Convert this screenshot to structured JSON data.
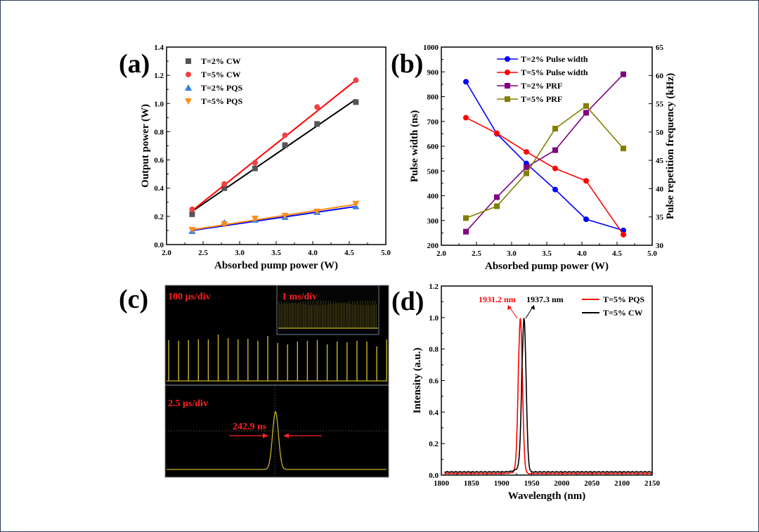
{
  "chart_data": [
    {
      "panel_label": "(a)",
      "type": "scatter",
      "xlabel": "Absorbed pump power (W)",
      "ylabel": "Output power (W)",
      "xlim": [
        2.0,
        5.0
      ],
      "ylim": [
        0.0,
        1.4
      ],
      "xticks": [
        "2.0",
        "2.5",
        "3.0",
        "3.5",
        "4.0",
        "4.5",
        "5.0"
      ],
      "yticks": [
        "0.0",
        "0.2",
        "0.4",
        "0.6",
        "0.8",
        "1.0",
        "1.2",
        "1.4"
      ],
      "legend_position": "top-left",
      "x": [
        2.35,
        2.79,
        3.21,
        3.62,
        4.06,
        4.59
      ],
      "series": [
        {
          "name": "T=2% CW",
          "marker": "square",
          "color": "#555555",
          "fit_color": "#000000",
          "values": [
            0.215,
            0.4,
            0.54,
            0.705,
            0.855,
            1.01
          ],
          "fit": [
            0.235,
            1.03
          ]
        },
        {
          "name": "T=5% CW",
          "marker": "circle",
          "color": "#f04040",
          "fit_color": "#ff0000",
          "values": [
            0.25,
            0.43,
            0.58,
            0.775,
            0.975,
            1.165
          ],
          "fit": [
            0.24,
            1.165
          ]
        },
        {
          "name": "T=2% PQS",
          "marker": "triangle-up",
          "color": "#2f7fe8",
          "fit_color": "#0000ff",
          "values": [
            0.095,
            0.155,
            0.175,
            0.195,
            0.23,
            0.27
          ],
          "fit": [
            0.1,
            0.27
          ]
        },
        {
          "name": "T=5% PQS",
          "marker": "triangle-down",
          "color": "#ff8c1a",
          "fit_color": "#ff8c1a",
          "values": [
            0.105,
            0.145,
            0.185,
            0.205,
            0.235,
            0.29
          ],
          "fit": [
            0.105,
            0.285
          ]
        }
      ]
    },
    {
      "panel_label": "(b)",
      "type": "line",
      "xlabel": "Absorbed pump power (W)",
      "ylabel": "Pulse width (ns)",
      "y2label": "Pulse repetition frequency (kHz)",
      "xlim": [
        2.0,
        5.0
      ],
      "ylim": [
        200,
        1000
      ],
      "y2lim": [
        30,
        65
      ],
      "xticks": [
        "2.0",
        "2.5",
        "3.0",
        "3.5",
        "4.0",
        "4.5",
        "5.0"
      ],
      "yticks": [
        "200",
        "300",
        "400",
        "500",
        "600",
        "700",
        "800",
        "900",
        "1000"
      ],
      "y2ticks": [
        "30",
        "35",
        "40",
        "45",
        "50",
        "55",
        "60",
        "65"
      ],
      "legend_position": "top-center",
      "x": [
        2.35,
        2.79,
        3.21,
        3.62,
        4.06,
        4.59
      ],
      "series": [
        {
          "name": "T=2% Pulse width",
          "axis": "left",
          "marker": "circle",
          "color": "#0000ff",
          "values": [
            860,
            650,
            530,
            425,
            305,
            260
          ]
        },
        {
          "name": "T=5% Pulse width",
          "axis": "left",
          "marker": "circle",
          "color": "#ff0000",
          "values": [
            715,
            652,
            577,
            510,
            460,
            243
          ]
        },
        {
          "name": "T=2% PRF",
          "axis": "right",
          "marker": "square",
          "color": "#800080",
          "values": [
            32.4,
            38.5,
            43.8,
            46.8,
            53.4,
            60.2
          ]
        },
        {
          "name": "T=5% PRF",
          "axis": "right",
          "marker": "square",
          "color": "#808000",
          "values": [
            34.8,
            36.9,
            42.7,
            50.6,
            54.6,
            47.1
          ]
        }
      ]
    },
    {
      "panel_label": "(c)",
      "type": "oscilloscope",
      "trace_color": "#c8b42a",
      "annotations": {
        "main_scale": "100 μs/div",
        "inset_scale": "1 ms/div",
        "zoom_scale": "2.5 μs/div",
        "pulse_width": "242.9 ns"
      }
    },
    {
      "panel_label": "(d)",
      "type": "line",
      "xlabel": "Wavelength (nm)",
      "ylabel": "Intensity (a.u.)",
      "xlim": [
        1800,
        2150
      ],
      "ylim": [
        0.0,
        1.2
      ],
      "xticks": [
        "1800",
        "1850",
        "1900",
        "1950",
        "2000",
        "2050",
        "2100",
        "2150"
      ],
      "yticks": [
        "0.0",
        "0.2",
        "0.4",
        "0.6",
        "0.8",
        "1.0",
        "1.2"
      ],
      "legend_position": "top-right",
      "series": [
        {
          "name": "T=5% PQS",
          "color": "#ff0000",
          "peak": 1931.2,
          "fwhm": 8,
          "baseline": 0.01
        },
        {
          "name": "T=5% CW",
          "color": "#000000",
          "peak": 1937.3,
          "fwhm": 8,
          "baseline": 0.02
        }
      ],
      "annotations": [
        {
          "text": "1931.2 nm",
          "color": "#ff0000"
        },
        {
          "text": "1937.3 nm",
          "color": "#000000"
        }
      ]
    }
  ]
}
